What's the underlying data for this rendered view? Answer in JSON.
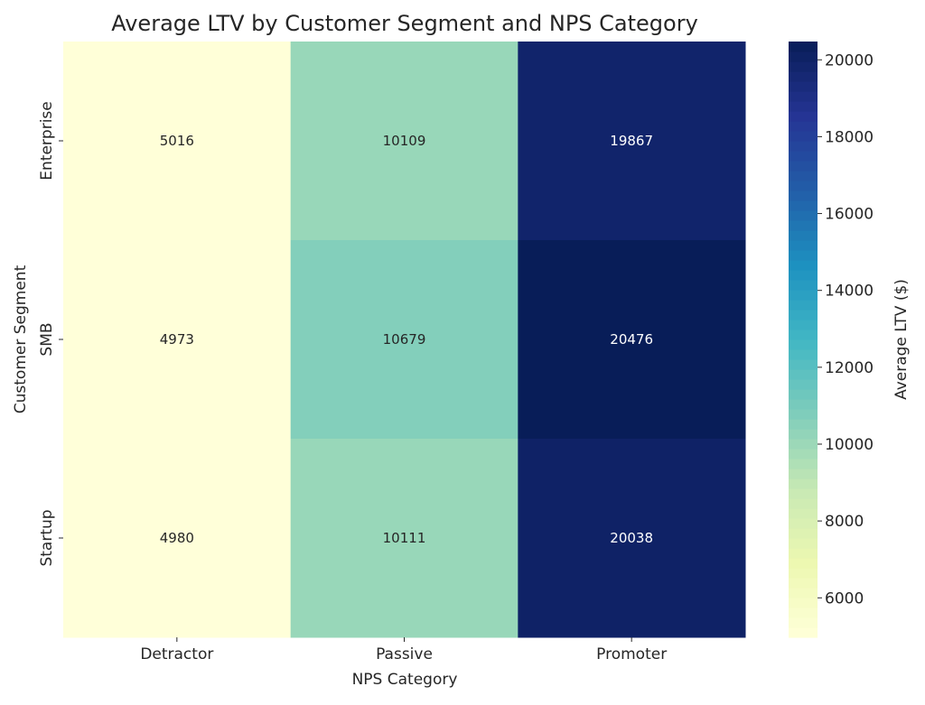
{
  "chart_data": {
    "type": "heatmap",
    "title": "Average LTV by Customer Segment and NPS Category",
    "xlabel": "NPS Category",
    "ylabel": "Customer Segment",
    "x_categories": [
      "Detractor",
      "Passive",
      "Promoter"
    ],
    "y_categories": [
      "Enterprise",
      "SMB",
      "Startup"
    ],
    "values": [
      [
        5016,
        10109,
        19867
      ],
      [
        4973,
        10679,
        20476
      ],
      [
        4980,
        10111,
        20038
      ]
    ],
    "colormap": "YlGnBu",
    "colormap_stops": [
      "#ffffd9",
      "#edf8b1",
      "#c7e9b4",
      "#7fcdbb",
      "#41b6c4",
      "#1d91c0",
      "#225ea8",
      "#253494",
      "#081d58"
    ],
    "value_range": [
      4973,
      20476
    ],
    "colorbar": {
      "label": "Average LTV ($)",
      "ticks": [
        6000,
        8000,
        10000,
        12000,
        14000,
        16000,
        18000,
        20000
      ]
    },
    "annotations": true,
    "grid": false
  }
}
